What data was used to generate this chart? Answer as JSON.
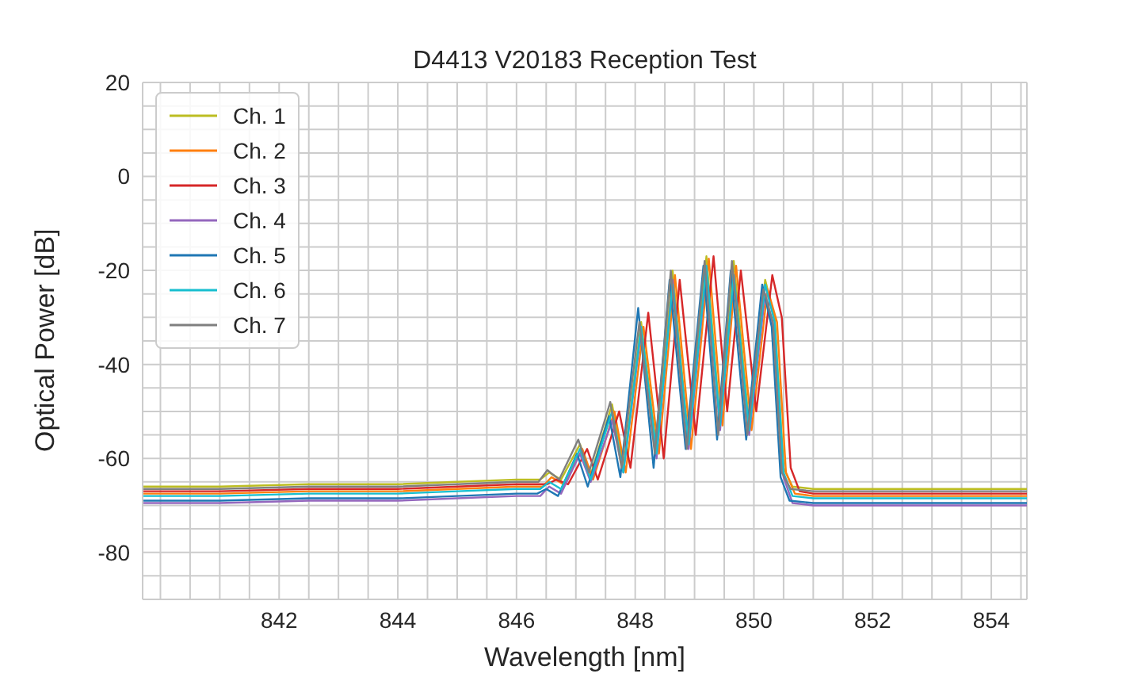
{
  "chart_data": {
    "type": "line",
    "title": "D4413 V20183 Reception Test",
    "xlabel": "Wavelength [nm]",
    "ylabel": "Optical Power [dB]",
    "xlim": [
      839.7,
      854.6
    ],
    "ylim": [
      -90,
      20
    ],
    "xticks": [
      {
        "value": 840,
        "label": null
      },
      {
        "value": 840.5,
        "label": null
      },
      {
        "value": 841,
        "label": null
      },
      {
        "value": 841.5,
        "label": null
      },
      842,
      {
        "value": 842.5,
        "label": null
      },
      {
        "value": 843,
        "label": null
      },
      {
        "value": 843.5,
        "label": null
      },
      844,
      {
        "value": 844.5,
        "label": null
      },
      {
        "value": 845,
        "label": null
      },
      {
        "value": 845.5,
        "label": null
      },
      846,
      {
        "value": 846.5,
        "label": null
      },
      {
        "value": 847,
        "label": null
      },
      {
        "value": 847.5,
        "label": null
      },
      848,
      {
        "value": 848.5,
        "label": null
      },
      {
        "value": 849,
        "label": null
      },
      {
        "value": 849.5,
        "label": null
      },
      850,
      {
        "value": 850.5,
        "label": null
      },
      {
        "value": 851,
        "label": null
      },
      {
        "value": 851.5,
        "label": null
      },
      852,
      {
        "value": 852.5,
        "label": null
      },
      {
        "value": 853,
        "label": null
      },
      {
        "value": 853.5,
        "label": null
      },
      854,
      {
        "value": 854.5,
        "label": null
      }
    ],
    "yticks": [
      {
        "value": -90,
        "label": null
      },
      {
        "value": -85,
        "label": null
      },
      -80,
      {
        "value": -75,
        "label": null
      },
      {
        "value": -70,
        "label": null
      },
      {
        "value": -65,
        "label": null
      },
      -60,
      {
        "value": -55,
        "label": null
      },
      {
        "value": -50,
        "label": null
      },
      {
        "value": -45,
        "label": null
      },
      -40,
      {
        "value": -35,
        "label": null
      },
      {
        "value": -30,
        "label": null
      },
      {
        "value": -25,
        "label": null
      },
      -20,
      {
        "value": -15,
        "label": null
      },
      {
        "value": -10,
        "label": null
      },
      {
        "value": -5,
        "label": null
      },
      0,
      {
        "value": 5,
        "label": null
      },
      {
        "value": 10,
        "label": null
      },
      {
        "value": 15,
        "label": null
      },
      20
    ],
    "grid": true,
    "legend": "top left",
    "marker": "none",
    "line_style": "solid",
    "series": [
      {
        "name": "Ch. 1",
        "color": "#bcbd22",
        "x": [
          839.7,
          841,
          842.5,
          844,
          845,
          846,
          846.4,
          846.55,
          846.75,
          847.07,
          847.25,
          847.61,
          847.8,
          848.1,
          848.36,
          848.63,
          848.9,
          849.2,
          849.43,
          849.66,
          849.92,
          850.19,
          850.35,
          850.5,
          850.65,
          851,
          852,
          853,
          854.6
        ],
        "values": [
          -66,
          -66,
          -65.5,
          -65.5,
          -65,
          -64.5,
          -64.5,
          -63,
          -64.5,
          -57,
          -63.5,
          -48.5,
          -62,
          -31,
          -58,
          -20,
          -57,
          -17,
          -52,
          -18,
          -53,
          -22,
          -30,
          -62,
          -66,
          -66.5,
          -66.5,
          -66.5,
          -66.5
        ]
      },
      {
        "name": "Ch. 2",
        "color": "#ff7f0e",
        "x": [
          839.7,
          841,
          842.5,
          844,
          845,
          846,
          846.44,
          846.59,
          846.79,
          847.11,
          847.29,
          847.65,
          847.84,
          848.14,
          848.4,
          848.67,
          848.94,
          849.24,
          849.47,
          849.7,
          849.96,
          850.23,
          850.39,
          850.54,
          850.69,
          851,
          852,
          853,
          854.6
        ],
        "values": [
          -67.5,
          -67.5,
          -67,
          -67,
          -66.5,
          -66,
          -66,
          -64,
          -65.5,
          -58,
          -64.5,
          -50,
          -63,
          -32,
          -59,
          -21,
          -58,
          -17.5,
          -53,
          -19,
          -54,
          -24,
          -31,
          -63,
          -67.5,
          -68,
          -68,
          -68,
          -68
        ]
      },
      {
        "name": "Ch. 3",
        "color": "#d62728",
        "x": [
          839.7,
          841,
          842.5,
          844,
          845,
          846,
          846.52,
          846.67,
          846.87,
          847.19,
          847.37,
          847.73,
          847.92,
          848.22,
          848.48,
          848.75,
          849.02,
          849.32,
          849.55,
          849.78,
          850.04,
          850.31,
          850.47,
          850.62,
          850.77,
          851,
          852,
          853,
          854.6
        ],
        "values": [
          -67,
          -67,
          -66.5,
          -66.5,
          -66,
          -65.5,
          -65.5,
          -64.5,
          -65.5,
          -58,
          -64.5,
          -50,
          -62,
          -29,
          -60,
          -22,
          -55,
          -17,
          -50,
          -20,
          -50,
          -21,
          -30,
          -62,
          -67,
          -67.5,
          -67.5,
          -67.5,
          -67.5
        ]
      },
      {
        "name": "Ch. 4",
        "color": "#9467bd",
        "x": [
          839.7,
          841,
          842.5,
          844,
          845,
          846,
          846.4,
          846.55,
          846.75,
          847.07,
          847.25,
          847.61,
          847.8,
          848.1,
          848.36,
          848.63,
          848.9,
          849.2,
          849.43,
          849.66,
          849.92,
          850.19,
          850.35,
          850.5,
          850.65,
          851,
          852,
          853,
          854.6
        ],
        "values": [
          -69.5,
          -69.5,
          -69,
          -69,
          -68.5,
          -68,
          -68,
          -66,
          -67.5,
          -59,
          -65,
          -52,
          -63,
          -33,
          -60,
          -22,
          -58,
          -20,
          -54,
          -21,
          -55,
          -25,
          -33,
          -64,
          -69.5,
          -70,
          -70,
          -70,
          -70
        ]
      },
      {
        "name": "Ch. 5",
        "color": "#1f77b4",
        "x": [
          839.7,
          841,
          842.5,
          844,
          845,
          846,
          846.35,
          846.5,
          846.7,
          847.02,
          847.2,
          847.56,
          847.75,
          848.05,
          848.31,
          848.58,
          848.85,
          849.15,
          849.38,
          849.61,
          849.87,
          850.14,
          850.3,
          850.45,
          850.6,
          851,
          852,
          853,
          854.6
        ],
        "values": [
          -69,
          -69,
          -68.5,
          -68.5,
          -68,
          -67.5,
          -67.5,
          -66.5,
          -68,
          -59,
          -66,
          -51,
          -64,
          -28,
          -62,
          -22,
          -58,
          -19,
          -56,
          -20,
          -56,
          -23,
          -32,
          -64,
          -69,
          -69.5,
          -69.5,
          -69.5,
          -69.5
        ]
      },
      {
        "name": "Ch. 6",
        "color": "#17becf",
        "x": [
          839.7,
          841,
          842.5,
          844,
          845,
          846,
          846.4,
          846.55,
          846.75,
          847.07,
          847.25,
          847.61,
          847.8,
          848.1,
          848.36,
          848.63,
          848.9,
          849.2,
          849.43,
          849.66,
          849.92,
          850.19,
          850.35,
          850.5,
          850.65,
          851,
          852,
          853,
          854.6
        ],
        "values": [
          -68,
          -68,
          -67.5,
          -67.5,
          -67,
          -66.5,
          -66.5,
          -65,
          -66.5,
          -58,
          -64.5,
          -50,
          -63,
          -32,
          -59,
          -23,
          -57,
          -19,
          -53,
          -21,
          -54,
          -23,
          -31,
          -63,
          -68,
          -68.5,
          -68.5,
          -68.5,
          -68.5
        ]
      },
      {
        "name": "Ch. 7",
        "color": "#7f7f7f",
        "x": [
          839.7,
          841,
          842.5,
          844,
          845,
          846,
          846.37,
          846.52,
          846.72,
          847.04,
          847.22,
          847.58,
          847.77,
          848.07,
          848.33,
          848.6,
          848.87,
          849.17,
          849.4,
          849.63,
          849.89,
          850.16,
          850.32,
          850.47,
          850.62,
          851,
          852,
          853,
          854.6
        ],
        "values": [
          -66.5,
          -66.5,
          -66,
          -66,
          -65.5,
          -65,
          -65,
          -62.5,
          -64.5,
          -56,
          -63,
          -48,
          -62,
          -31,
          -59,
          -20,
          -58,
          -18,
          -55,
          -18,
          -55,
          -24,
          -31,
          -63,
          -66.5,
          -67,
          -67,
          -67,
          -67
        ]
      }
    ]
  }
}
